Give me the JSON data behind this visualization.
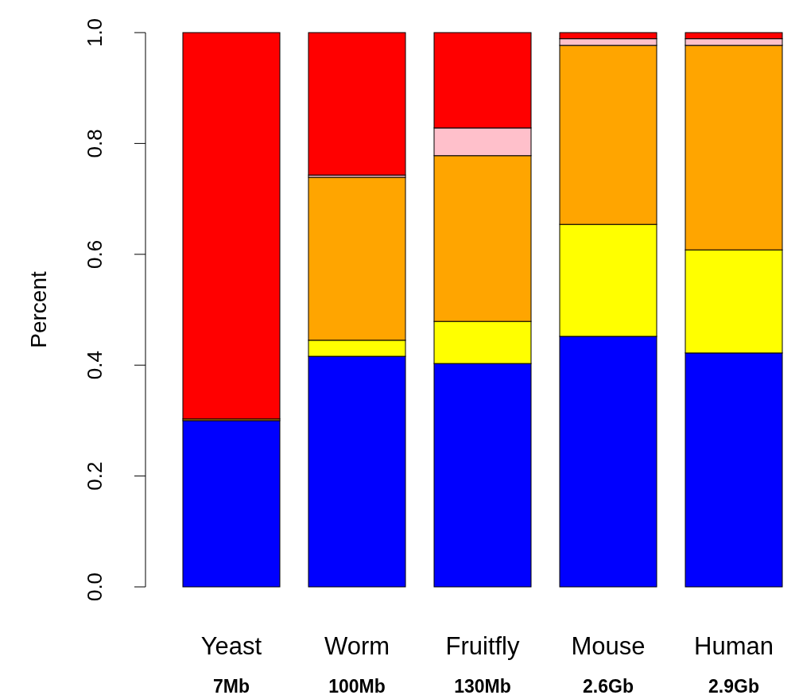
{
  "chart_data": {
    "type": "bar",
    "stacked": true,
    "ylabel": "Percent",
    "categories": [
      "Yeast\n7Mb",
      "Worm\n100Mb",
      "Fruitfly\n130Mb",
      "Mouse\n2.6Gb",
      "Human\n2.9Gb"
    ],
    "series": [
      {
        "color": "#0000ff",
        "values": [
          0.3,
          0.416,
          0.403,
          0.452,
          0.422
        ]
      },
      {
        "color": "#ffff00",
        "values": [
          0,
          0.029,
          0.076,
          0.202,
          0.186
        ]
      },
      {
        "color": "#ffa500",
        "values": [
          0.003,
          0.294,
          0.299,
          0.323,
          0.369
        ]
      },
      {
        "color": "#ffc0cb",
        "values": [
          0,
          0.004,
          0.05,
          0.012,
          0.012
        ]
      },
      {
        "color": "#ff0000",
        "values": [
          0.697,
          0.257,
          0.172,
          0.011,
          0.011
        ]
      }
    ],
    "ylim": [
      0,
      1
    ],
    "yticks": [
      {
        "value": 0,
        "label": "0.0"
      },
      {
        "value": 0.2,
        "label": "0.2"
      },
      {
        "value": 0.4,
        "label": "0.4"
      },
      {
        "value": 0.6,
        "label": "0.6"
      },
      {
        "value": 0.8,
        "label": "0.8"
      },
      {
        "value": 1,
        "label": "1.0"
      }
    ],
    "grid": false
  }
}
